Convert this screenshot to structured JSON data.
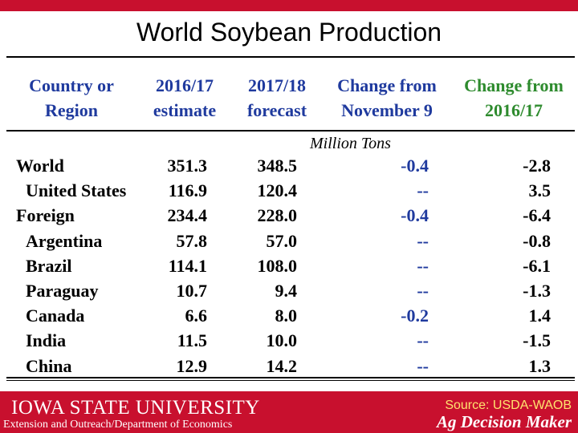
{
  "title": "World Soybean Production",
  "colors": {
    "header_blue": "#1f3a9e",
    "header_green": "#2e8b2e",
    "value_blue": "#1f3a9e",
    "brand_red": "#c8102e",
    "source_yellow": "#ffe36e"
  },
  "headers": {
    "country": "Country or Region",
    "estimate": "2016/17 estimate",
    "forecast": "2017/18 forecast",
    "change_nov": "Change from November 9",
    "change_prev": "Change from 2016/17"
  },
  "units": "Million Tons",
  "rows": [
    {
      "name": "World",
      "estimate": "351.3",
      "forecast": "348.5",
      "change_nov": "-0.4",
      "change_prev": "-2.8",
      "indent": false
    },
    {
      "name": "United States",
      "estimate": "116.9",
      "forecast": "120.4",
      "change_nov": "--",
      "change_prev": "3.5",
      "indent": true
    },
    {
      "name": "Foreign",
      "estimate": "234.4",
      "forecast": "228.0",
      "change_nov": "-0.4",
      "change_prev": "-6.4",
      "indent": false
    },
    {
      "name": "Argentina",
      "estimate": "57.8",
      "forecast": "57.0",
      "change_nov": "--",
      "change_prev": "-0.8",
      "indent": true
    },
    {
      "name": "Brazil",
      "estimate": "114.1",
      "forecast": "108.0",
      "change_nov": "--",
      "change_prev": "-6.1",
      "indent": true
    },
    {
      "name": "Paraguay",
      "estimate": "10.7",
      "forecast": "9.4",
      "change_nov": "--",
      "change_prev": "-1.3",
      "indent": true
    },
    {
      "name": "Canada",
      "estimate": "6.6",
      "forecast": "8.0",
      "change_nov": "-0.2",
      "change_prev": "1.4",
      "indent": true
    },
    {
      "name": "India",
      "estimate": "11.5",
      "forecast": "10.0",
      "change_nov": "--",
      "change_prev": "-1.5",
      "indent": true
    },
    {
      "name": "China",
      "estimate": "12.9",
      "forecast": "14.2",
      "change_nov": "--",
      "change_prev": "1.3",
      "indent": true
    }
  ],
  "footer": {
    "university": "IOWA STATE UNIVERSITY",
    "department": "Extension and Outreach/Department of Economics",
    "source": "Source: USDA-WAOB",
    "brand": "Ag Decision Maker"
  }
}
